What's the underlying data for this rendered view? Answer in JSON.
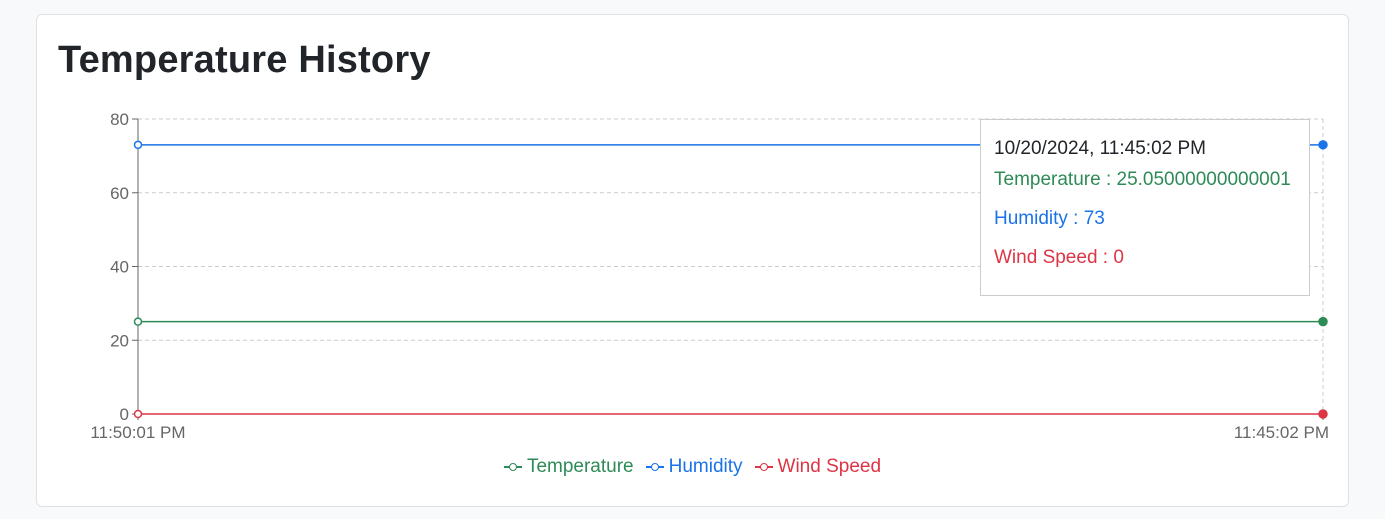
{
  "card": {
    "title": "Temperature History"
  },
  "chart_data": {
    "type": "line",
    "x": [
      "11:50:01 PM",
      "11:45:02 PM"
    ],
    "ylim": [
      0,
      80
    ],
    "yticks": [
      0,
      20,
      40,
      60,
      80
    ],
    "grid": true,
    "legend_position": "bottom",
    "series": [
      {
        "name": "Temperature",
        "values": [
          25.05,
          25.05000000000001
        ],
        "color": "#2e8b57"
      },
      {
        "name": "Humidity",
        "values": [
          73,
          73
        ],
        "color": "#1a73e8"
      },
      {
        "name": "Wind Speed",
        "values": [
          0,
          0
        ],
        "color": "#dc3545"
      }
    ]
  },
  "tooltip": {
    "label": "10/20/2024, 11:45:02 PM",
    "rows": [
      {
        "text": "Temperature : 25.05000000000001",
        "color": "#2e8b57"
      },
      {
        "text": "Humidity : 73",
        "color": "#1a73e8"
      },
      {
        "text": "Wind Speed : 0",
        "color": "#dc3545"
      }
    ]
  }
}
